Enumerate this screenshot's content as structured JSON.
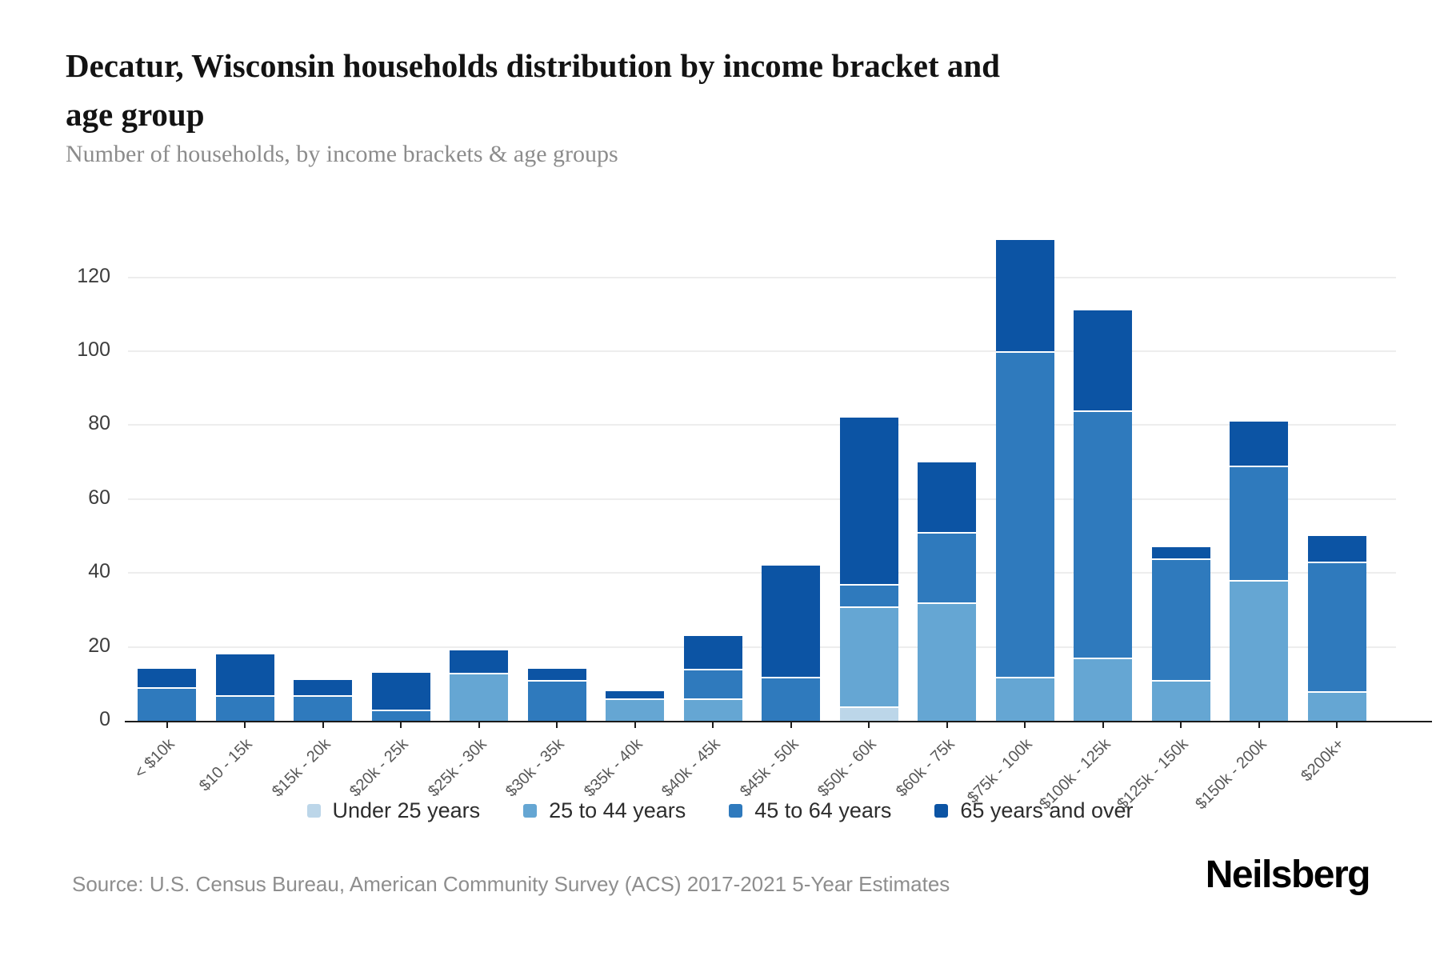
{
  "header": {
    "title_lines": [
      "Decatur, Wisconsin households distribution by income bracket and",
      "age group"
    ],
    "subtitle": "Number of households, by income brackets & age groups"
  },
  "chart_data": {
    "type": "bar",
    "stacked": true,
    "title": "Decatur, Wisconsin households distribution by income bracket and age group",
    "xlabel": "",
    "ylabel": "Number of households",
    "categories": [
      "< $10k",
      "$10 - 15k",
      "$15k - 20k",
      "$20k - 25k",
      "$25k - 30k",
      "$30k - 35k",
      "$35k - 40k",
      "$40k - 45k",
      "$45k - 50k",
      "$50k - 60k",
      "$60k - 75k",
      "$75k - 100k",
      "$100k - 125k",
      "$125k - 150k",
      "$150k - 200k",
      "$200k+"
    ],
    "series": [
      {
        "name": "Under 25 years",
        "color": "#bcd6e9",
        "values": [
          0,
          0,
          0,
          0,
          0,
          0,
          0,
          0,
          0,
          4,
          0,
          0,
          0,
          0,
          0,
          0
        ]
      },
      {
        "name": "25 to 44 years",
        "color": "#65a6d3",
        "values": [
          0,
          0,
          0,
          0,
          13,
          0,
          6,
          6,
          0,
          27,
          32,
          12,
          17,
          11,
          38,
          8
        ]
      },
      {
        "name": "45 to 64 years",
        "color": "#2f7abd",
        "values": [
          9,
          7,
          7,
          3,
          0,
          11,
          0,
          8,
          12,
          6,
          19,
          88,
          67,
          33,
          31,
          35
        ]
      },
      {
        "name": "65 years and over",
        "color": "#0c54a4",
        "values": [
          5,
          11,
          4,
          10,
          6,
          3,
          2,
          9,
          30,
          45,
          19,
          30,
          27,
          3,
          12,
          7
        ]
      }
    ],
    "totals": [
      14,
      18,
      11,
      13,
      19,
      14,
      8,
      23,
      42,
      82,
      70,
      130,
      111,
      47,
      81,
      50
    ],
    "y_ticks": [
      0,
      20,
      40,
      60,
      80,
      100,
      120
    ],
    "ylim": [
      0,
      139
    ],
    "grid": "horizontal",
    "legend_position": "bottom",
    "colors": {
      "axis": "#1b1b1b",
      "gridline": "#ededed",
      "tick_label": "#3d3d3d",
      "x_label": "#585858"
    }
  },
  "footer": {
    "source": "Source: U.S. Census Bureau, American Community Survey (ACS) 2017-2021 5-Year Estimates",
    "brand": "Neilsberg"
  }
}
